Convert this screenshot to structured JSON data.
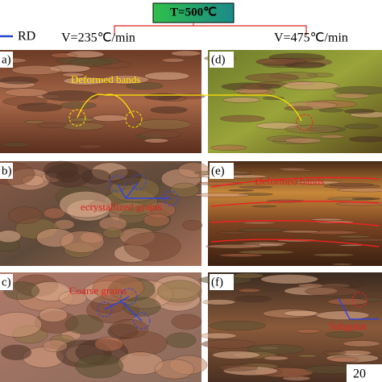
{
  "header": {
    "temperature": "T=500℃",
    "direction": "RD",
    "rate_left": "V=235℃/min",
    "rate_right": "V=475℃/min"
  },
  "panels": [
    {
      "label": "a)",
      "annotation": "Deformed bands"
    },
    {
      "label": "(d)"
    },
    {
      "label": "b)",
      "annotation": "ecrystallized grains"
    },
    {
      "label": "(e)",
      "annotation": "Deformed bands"
    },
    {
      "label": "c)",
      "annotation": "Coarse grains"
    },
    {
      "label": "(f)",
      "annotation": "Subgrain"
    }
  ],
  "scale_bar": "20"
}
